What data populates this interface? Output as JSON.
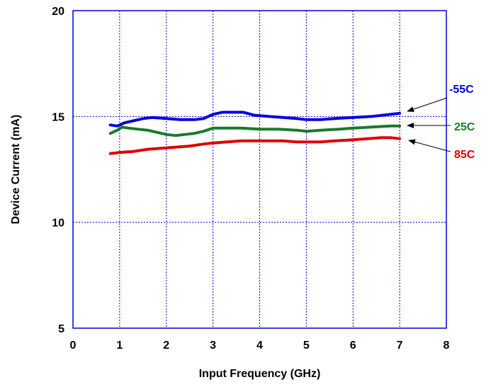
{
  "chart_data": {
    "type": "line",
    "title": "",
    "xlabel": "Input Frequency (GHz)",
    "ylabel": "Device Current (mA)",
    "xlim": [
      0,
      8
    ],
    "ylim": [
      5,
      20
    ],
    "xticks": [
      0,
      1,
      2,
      3,
      4,
      5,
      6,
      7,
      8
    ],
    "yticks": [
      5,
      10,
      15,
      20
    ],
    "grid": true,
    "grid_style": "dotted",
    "legend": "inline labels at right with arrows",
    "series": [
      {
        "name": "-55C",
        "color": "#0000dd",
        "x": [
          0.8,
          0.95,
          1.1,
          1.3,
          1.5,
          1.7,
          2.0,
          2.3,
          2.6,
          2.8,
          3.0,
          3.2,
          3.4,
          3.65,
          3.9,
          4.2,
          4.5,
          4.8,
          5.0,
          5.3,
          5.6,
          6.0,
          6.4,
          6.8,
          7.0
        ],
        "y": [
          14.6,
          14.55,
          14.7,
          14.8,
          14.9,
          14.95,
          14.9,
          14.85,
          14.85,
          14.9,
          15.1,
          15.2,
          15.2,
          15.2,
          15.05,
          15.0,
          14.95,
          14.9,
          14.85,
          14.85,
          14.9,
          14.95,
          15.0,
          15.1,
          15.15
        ]
      },
      {
        "name": "25C",
        "color": "#1a7a2a",
        "x": [
          0.8,
          0.95,
          1.05,
          1.2,
          1.4,
          1.6,
          1.8,
          2.0,
          2.2,
          2.4,
          2.6,
          2.8,
          3.0,
          3.3,
          3.6,
          4.0,
          4.4,
          4.8,
          5.0,
          5.3,
          5.7,
          6.0,
          6.4,
          6.8,
          7.0
        ],
        "y": [
          14.2,
          14.35,
          14.5,
          14.45,
          14.4,
          14.35,
          14.25,
          14.15,
          14.1,
          14.15,
          14.2,
          14.3,
          14.45,
          14.45,
          14.45,
          14.4,
          14.4,
          14.35,
          14.3,
          14.35,
          14.4,
          14.45,
          14.5,
          14.55,
          14.55
        ]
      },
      {
        "name": "85C",
        "color": "#dd0000",
        "x": [
          0.8,
          1.0,
          1.3,
          1.6,
          1.9,
          2.2,
          2.5,
          2.8,
          3.0,
          3.3,
          3.6,
          3.9,
          4.2,
          4.5,
          4.8,
          5.0,
          5.3,
          5.6,
          6.0,
          6.3,
          6.6,
          6.8,
          7.0
        ],
        "y": [
          13.25,
          13.3,
          13.35,
          13.45,
          13.5,
          13.55,
          13.6,
          13.7,
          13.75,
          13.8,
          13.85,
          13.85,
          13.85,
          13.85,
          13.8,
          13.8,
          13.8,
          13.85,
          13.9,
          13.95,
          14.0,
          14.0,
          13.95
        ]
      }
    ]
  }
}
